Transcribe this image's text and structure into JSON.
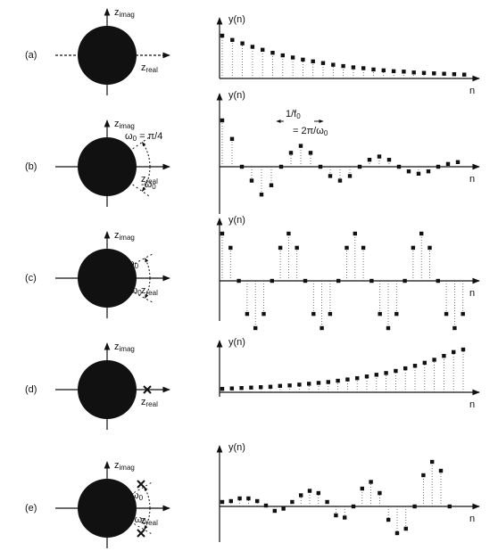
{
  "panels": [
    {
      "label": "(a)",
      "z_imag": [
        "z",
        "imag"
      ],
      "z_real": [
        "z",
        "real"
      ],
      "y_label": "y(n)",
      "n_label": "n",
      "annotations": [],
      "values": [
        1,
        0.9,
        0.82,
        0.74,
        0.67,
        0.6,
        0.54,
        0.49,
        0.44,
        0.4,
        0.36,
        0.32,
        0.29,
        0.26,
        0.24,
        0.21,
        0.19,
        0.17,
        0.16,
        0.14,
        0.13,
        0.12,
        0.11,
        0.1,
        0.09
      ]
    },
    {
      "label": "(b)",
      "z_imag": [
        "z",
        "imag"
      ],
      "z_real": [
        "z",
        "real"
      ],
      "y_label": "y(n)",
      "n_label": "n",
      "annotations": [
        [
          "ω",
          "0",
          " = π/4"
        ],
        [
          "-ω",
          "0"
        ],
        [
          "1/f",
          "0"
        ],
        [
          "= 2π/ω",
          "0"
        ]
      ],
      "values": [
        1,
        0.6,
        0,
        -0.3,
        -0.6,
        -0.4,
        0,
        0.3,
        0.45,
        0.3,
        0,
        -0.2,
        -0.3,
        -0.2,
        0,
        0.15,
        0.22,
        0.15,
        0,
        -0.1,
        -0.15,
        -0.1,
        0,
        0.06,
        0.1
      ]
    },
    {
      "label": "(c)",
      "z_imag": [
        "z",
        "imag"
      ],
      "z_real": [
        "z",
        "real"
      ],
      "y_label": "y(n)",
      "n_label": "n",
      "annotations": [
        [
          "ω",
          "0"
        ],
        [
          "-ω",
          "0"
        ]
      ],
      "values": [
        1,
        0.7,
        0,
        -0.7,
        -1,
        -0.7,
        0,
        0.7,
        1,
        0.7,
        0,
        -0.7,
        -1,
        -0.7,
        0,
        0.7,
        1,
        0.7,
        0,
        -0.7,
        -1,
        -0.7,
        0,
        0.7,
        1,
        0.7,
        0,
        -0.7,
        -1,
        -0.7
      ]
    },
    {
      "label": "(d)",
      "z_imag": [
        "z",
        "imag"
      ],
      "z_real": [
        "z",
        "real"
      ],
      "y_label": "y(n)",
      "n_label": "n",
      "annotations": [],
      "values": [
        0.08,
        0.09,
        0.1,
        0.11,
        0.12,
        0.13,
        0.15,
        0.16,
        0.18,
        0.2,
        0.22,
        0.24,
        0.27,
        0.3,
        0.33,
        0.37,
        0.41,
        0.45,
        0.5,
        0.56,
        0.62,
        0.69,
        0.76,
        0.85,
        0.94,
        1
      ]
    },
    {
      "label": "(e)",
      "z_imag": [
        "z",
        "imag"
      ],
      "z_real": [
        "z",
        "real"
      ],
      "y_label": "y(n)",
      "n_label": "n",
      "annotations": [
        [
          "ω",
          "0"
        ],
        [
          "-ω",
          "0"
        ]
      ],
      "values": [
        0.1,
        0.12,
        0.18,
        0.18,
        0.12,
        0.02,
        -0.1,
        -0.05,
        0.1,
        0.25,
        0.35,
        0.3,
        0.1,
        -0.2,
        -0.25,
        0,
        0.4,
        0.55,
        0.3,
        -0.3,
        -0.6,
        -0.5,
        0,
        0.7,
        1,
        0.8,
        0
      ]
    }
  ]
}
